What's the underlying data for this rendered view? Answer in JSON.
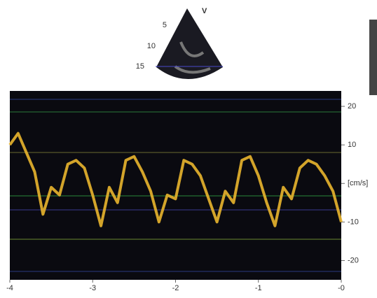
{
  "sector": {
    "view": "V",
    "depths": [
      "5",
      "10",
      "15"
    ]
  },
  "chart_data": {
    "type": "line",
    "x": [
      -4,
      -3.9,
      -3.8,
      -3.7,
      -3.6,
      -3.5,
      -3.4,
      -3.3,
      -3.2,
      -3.1,
      -3.0,
      -2.9,
      -2.8,
      -2.7,
      -2.6,
      -2.5,
      -2.4,
      -2.3,
      -2.2,
      -2.1,
      -2.0,
      -1.9,
      -1.8,
      -1.7,
      -1.6,
      -1.5,
      -1.4,
      -1.3,
      -1.2,
      -1.1,
      -1.0,
      -0.9,
      -0.8,
      -0.7,
      -0.6,
      -0.5,
      -0.4,
      -0.3,
      -0.2,
      -0.1,
      0
    ],
    "series": [
      {
        "color": "#e9b52e",
        "values": [
          10,
          13,
          8,
          3,
          -8,
          -1,
          -3,
          5,
          6,
          4,
          -3,
          -11,
          -1,
          -5,
          6,
          7,
          3,
          -2,
          -10,
          -3,
          -4,
          6,
          5,
          2,
          -4,
          -10,
          -2,
          -5,
          6,
          7,
          2,
          -5,
          -11,
          -1,
          -4,
          4,
          6,
          5,
          2,
          -2,
          -10
        ]
      }
    ],
    "xlim": [
      -4,
      0
    ],
    "xticks": [
      -4,
      -3,
      -2,
      -1,
      {
        "value": 0,
        "label": "-0"
      }
    ],
    "ylim": [
      -25,
      24
    ],
    "yticks": [
      20,
      10,
      {
        "value": 0,
        "label": "[cm/s]"
      },
      -10,
      -20
    ]
  }
}
